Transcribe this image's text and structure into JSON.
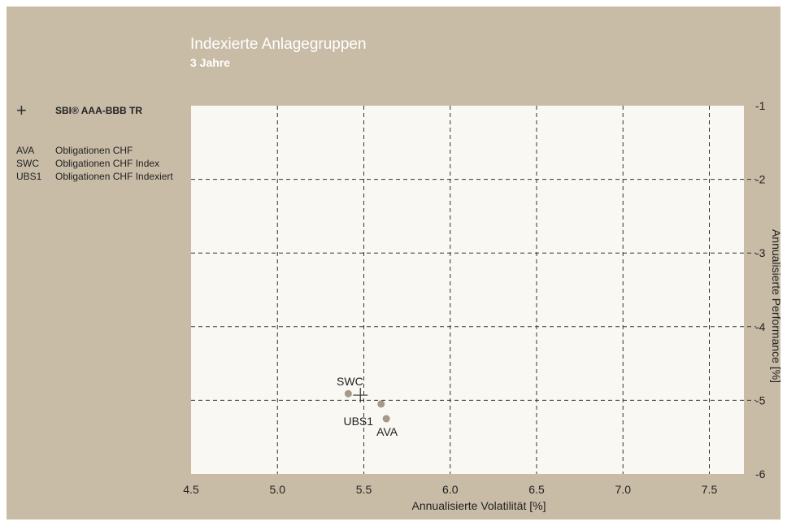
{
  "chart_data": {
    "type": "scatter",
    "title": "Indexierte Anlagegruppen",
    "subtitle": "3 Jahre",
    "xlabel": "Annualisierte Volatilität [%]",
    "ylabel": "Annualisierte Performance [%]",
    "xlim": [
      4.5,
      7.7
    ],
    "ylim": [
      -6,
      -1
    ],
    "x_ticks": [
      "4.5",
      "5.0",
      "5.5",
      "6.0",
      "6.5",
      "7.0",
      "7.5"
    ],
    "y_ticks": [
      "-1",
      "-2",
      "-3",
      "-4",
      "-5",
      "-6"
    ],
    "grid": true,
    "legend_position": "left",
    "benchmark": {
      "symbol": "+",
      "name": "SBI® AAA-BBB TR",
      "x": 5.48,
      "y": -4.93
    },
    "series": [
      {
        "code": "AVA",
        "name": "Obligationen CHF",
        "x": 5.63,
        "y": -5.25,
        "label_side": "below"
      },
      {
        "code": "SWC",
        "name": "Obligationen CHF Index",
        "x": 5.41,
        "y": -4.91,
        "label_side": "above"
      },
      {
        "code": "UBS1",
        "name": "Obligationen CHF Indexiert",
        "x": 5.6,
        "y": -5.05,
        "label_side": "below-left"
      }
    ],
    "colors": {
      "background": "#c9bca6",
      "plot_area": "#faf8f3",
      "marker": "#a59a86",
      "grid": "#333333",
      "text": "#222222"
    }
  }
}
